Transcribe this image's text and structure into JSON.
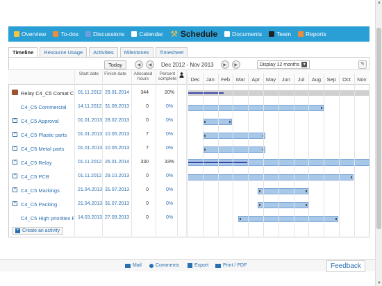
{
  "nav": {
    "items": [
      {
        "label": "Overview",
        "icon": "home-icon",
        "color": "#f4c542"
      },
      {
        "label": "To-dos",
        "icon": "todo-icon",
        "color": "#f08c3a"
      },
      {
        "label": "Discussions",
        "icon": "discussions-icon",
        "color": "#6aa0e0"
      },
      {
        "label": "Calendar",
        "icon": "calendar-icon",
        "color": "#ffffff"
      },
      {
        "label": "Schedule",
        "icon": "schedule-icon",
        "color": "#f4c542",
        "active": true
      },
      {
        "label": "Documents",
        "icon": "documents-icon",
        "color": "#ffffff"
      },
      {
        "label": "Team",
        "icon": "team-icon",
        "color": "#222222"
      },
      {
        "label": "Reports",
        "icon": "reports-icon",
        "color": "#f08c3a"
      }
    ]
  },
  "tabs": [
    {
      "label": "Timeline",
      "active": true
    },
    {
      "label": "Resource Usage"
    },
    {
      "label": "Activities"
    },
    {
      "label": "Milestones"
    },
    {
      "label": "Timesheet"
    }
  ],
  "toolbar": {
    "today": "Today",
    "range": "Dec 2012 - Nov 2013",
    "display": "Display 12 months"
  },
  "columns": {
    "start": "Start date",
    "finish": "Finish date",
    "allocated": "Allocated hours",
    "percent": "Percent complete"
  },
  "months": [
    "Dec",
    "Jan",
    "Feb",
    "Mar",
    "Apr",
    "May",
    "Jun",
    "Jul",
    "Aug",
    "Sep",
    "Oct",
    "Nov"
  ],
  "rows": [
    {
      "name": "Relay C4_C5 Comat C",
      "start": "01.11.2012",
      "finish": "29.01.2014",
      "hours": "344",
      "pct": "20%",
      "type": "main",
      "expand": false,
      "bar_start": 0.0,
      "bar_end": 1.0,
      "progress": 0.2
    },
    {
      "name": "C4_C5 Commercial",
      "start": "14.11.2012",
      "finish": "31.08.2013",
      "hours": "0",
      "pct": "0%",
      "type": "task",
      "expand": false,
      "bar_start": 0.0,
      "bar_end": 0.75
    },
    {
      "name": "C4_C5 Approval",
      "start": "01.01.2013",
      "finish": "28.02.2013",
      "hours": "0",
      "pct": "0%",
      "type": "task",
      "expand": true,
      "bar_start": 0.085,
      "bar_end": 0.245
    },
    {
      "name": "C4_C5 Plastic parts",
      "start": "01.01.2013",
      "finish": "10.05.2013",
      "hours": "7",
      "pct": "0%",
      "type": "task",
      "expand": true,
      "bar_start": 0.085,
      "bar_end": 0.43
    },
    {
      "name": "C4_C5 Metal parts",
      "start": "01.01.2013",
      "finish": "10.05.2013",
      "hours": "7",
      "pct": "0%",
      "type": "task",
      "expand": true,
      "bar_start": 0.085,
      "bar_end": 0.43
    },
    {
      "name": "C4_C5 Relay",
      "start": "01.11.2012",
      "finish": "26.01.2014",
      "hours": "330",
      "pct": "33%",
      "type": "group",
      "expand": true,
      "bar_start": 0.0,
      "bar_end": 1.0,
      "progress": 0.33
    },
    {
      "name": "C4_C5 PCB",
      "start": "01.11.2012",
      "finish": "29.10.2013",
      "hours": "0",
      "pct": "0%",
      "type": "task",
      "expand": true,
      "bar_start": 0.0,
      "bar_end": 0.915
    },
    {
      "name": "C4_C5 Markings",
      "start": "21.04.2013",
      "finish": "31.07.2013",
      "hours": "0",
      "pct": "0%",
      "type": "task",
      "expand": true,
      "bar_start": 0.385,
      "bar_end": 0.665
    },
    {
      "name": "C4_C5 Packing",
      "start": "21.04.2013",
      "finish": "31.07.2013",
      "hours": "0",
      "pct": "0%",
      "type": "task",
      "expand": true,
      "bar_start": 0.385,
      "bar_end": 0.665
    },
    {
      "name": "C4_C5 High priorities F",
      "start": "14.03.2013",
      "finish": "27.09.2013",
      "hours": "0",
      "pct": "0%",
      "type": "task",
      "expand": false,
      "bar_start": 0.28,
      "bar_end": 0.83
    }
  ],
  "create_activity": "Create an activity",
  "footer": {
    "mail": "Mail",
    "comments": "Comments",
    "export": "Export",
    "print": "Print / PDF",
    "feedback": "Feedback"
  },
  "colors": {
    "accent": "#2a9fd6",
    "bar": "#a8c8ea",
    "progress": "#3b45a8"
  }
}
